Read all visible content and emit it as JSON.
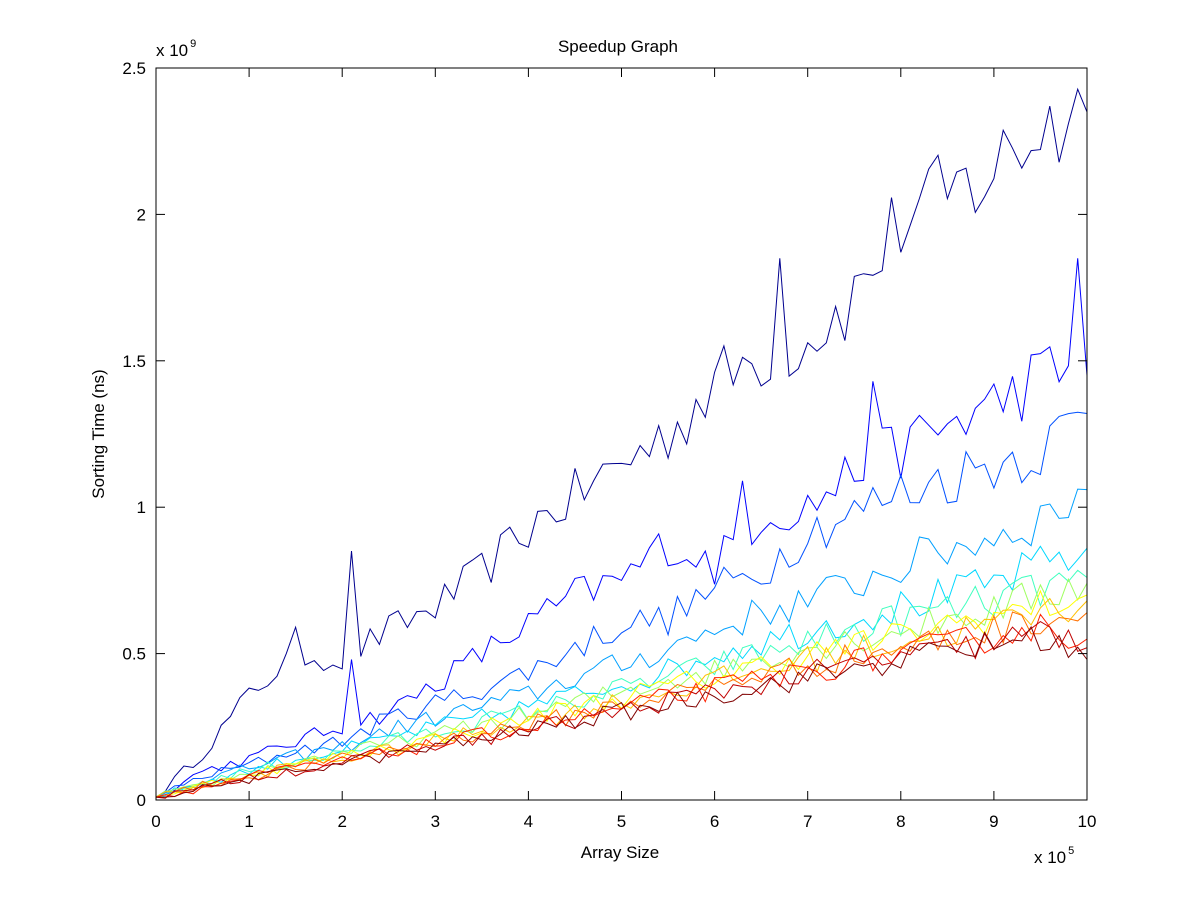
{
  "chart_data": {
    "type": "line",
    "title": "Speedup Graph",
    "xlabel": "Array Size",
    "ylabel": "Sorting Time (ns)",
    "x_multiplier": {
      "base": "x 10",
      "exponent": "5"
    },
    "y_multiplier": {
      "base": "x 10",
      "exponent": "9"
    },
    "xlim": [
      0,
      10
    ],
    "ylim": [
      0,
      2.5
    ],
    "x_ticks": [
      "0",
      "1",
      "2",
      "3",
      "4",
      "5",
      "6",
      "7",
      "8",
      "9",
      "10"
    ],
    "y_ticks": [
      "0",
      "0.5",
      "1",
      "1.5",
      "2",
      "2.5"
    ],
    "y_tick_values": [
      0,
      0.5,
      1,
      1.5,
      2,
      2.5
    ],
    "grid": false,
    "legend": "none",
    "x": [
      0,
      0.5,
      1,
      1.5,
      2,
      2.5,
      3,
      3.5,
      4,
      4.5,
      5,
      5.5,
      6,
      6.5,
      7,
      7.5,
      8,
      8.5,
      9,
      9.5,
      10
    ],
    "series": [
      {
        "color": "#00008f",
        "values": [
          0.01,
          0.16,
          0.36,
          0.5,
          0.48,
          0.58,
          0.66,
          0.78,
          0.93,
          1.04,
          1.15,
          1.25,
          1.42,
          1.52,
          1.58,
          1.72,
          1.98,
          2.05,
          2.15,
          2.3,
          2.35
        ],
        "spikes": [
          [
            1.5,
            0.59
          ],
          [
            2.1,
            0.85
          ],
          [
            6.7,
            1.85
          ],
          [
            9.6,
            2.37
          ]
        ]
      },
      {
        "color": "#0000ff",
        "values": [
          0.01,
          0.1,
          0.14,
          0.2,
          0.25,
          0.3,
          0.4,
          0.5,
          0.6,
          0.7,
          0.75,
          0.88,
          0.8,
          0.98,
          1.0,
          1.12,
          1.2,
          1.28,
          1.35,
          1.45,
          1.45
        ],
        "spikes": [
          [
            2.1,
            0.48
          ],
          [
            6.3,
            1.09
          ],
          [
            7.7,
            1.43
          ],
          [
            9.9,
            1.85
          ]
        ]
      },
      {
        "color": "#0050ff",
        "values": [
          0.01,
          0.08,
          0.12,
          0.17,
          0.2,
          0.28,
          0.33,
          0.38,
          0.44,
          0.52,
          0.6,
          0.62,
          0.72,
          0.78,
          0.92,
          0.98,
          1.05,
          1.1,
          1.15,
          1.2,
          1.32
        ]
      },
      {
        "color": "#00a0ff",
        "values": [
          0.01,
          0.07,
          0.11,
          0.15,
          0.18,
          0.24,
          0.28,
          0.32,
          0.36,
          0.42,
          0.46,
          0.52,
          0.58,
          0.64,
          0.68,
          0.74,
          0.8,
          0.86,
          0.9,
          0.96,
          1.06
        ]
      },
      {
        "color": "#00d8ff",
        "values": [
          0.01,
          0.06,
          0.1,
          0.14,
          0.17,
          0.21,
          0.25,
          0.28,
          0.32,
          0.36,
          0.4,
          0.44,
          0.5,
          0.54,
          0.58,
          0.62,
          0.66,
          0.7,
          0.74,
          0.8,
          0.86
        ]
      },
      {
        "color": "#40ffbf",
        "values": [
          0.01,
          0.06,
          0.1,
          0.13,
          0.16,
          0.2,
          0.23,
          0.27,
          0.3,
          0.34,
          0.38,
          0.42,
          0.46,
          0.5,
          0.54,
          0.58,
          0.62,
          0.65,
          0.68,
          0.72,
          0.76
        ]
      },
      {
        "color": "#9fff60",
        "values": [
          0.01,
          0.05,
          0.09,
          0.13,
          0.16,
          0.19,
          0.22,
          0.26,
          0.29,
          0.33,
          0.37,
          0.41,
          0.44,
          0.48,
          0.52,
          0.55,
          0.58,
          0.62,
          0.65,
          0.7,
          0.74
        ]
      },
      {
        "color": "#ffff00",
        "values": [
          0.01,
          0.05,
          0.09,
          0.12,
          0.15,
          0.18,
          0.21,
          0.25,
          0.28,
          0.32,
          0.35,
          0.39,
          0.42,
          0.46,
          0.5,
          0.53,
          0.56,
          0.6,
          0.63,
          0.66,
          0.7
        ]
      },
      {
        "color": "#ffbf00",
        "values": [
          0.01,
          0.05,
          0.08,
          0.12,
          0.14,
          0.17,
          0.2,
          0.24,
          0.27,
          0.3,
          0.34,
          0.37,
          0.41,
          0.44,
          0.48,
          0.51,
          0.54,
          0.57,
          0.6,
          0.64,
          0.68
        ]
      },
      {
        "color": "#ff7000",
        "values": [
          0.01,
          0.05,
          0.08,
          0.11,
          0.14,
          0.17,
          0.2,
          0.23,
          0.26,
          0.29,
          0.33,
          0.36,
          0.39,
          0.43,
          0.46,
          0.49,
          0.52,
          0.55,
          0.58,
          0.62,
          0.64
        ]
      },
      {
        "color": "#ff2000",
        "values": [
          0.01,
          0.04,
          0.08,
          0.11,
          0.13,
          0.16,
          0.19,
          0.22,
          0.25,
          0.28,
          0.31,
          0.35,
          0.38,
          0.41,
          0.44,
          0.47,
          0.5,
          0.53,
          0.56,
          0.59,
          0.55
        ]
      },
      {
        "color": "#c00000",
        "values": [
          0.01,
          0.04,
          0.08,
          0.1,
          0.13,
          0.16,
          0.19,
          0.21,
          0.24,
          0.27,
          0.3,
          0.34,
          0.37,
          0.4,
          0.43,
          0.46,
          0.49,
          0.51,
          0.54,
          0.57,
          0.52
        ]
      },
      {
        "color": "#800000",
        "values": [
          0.01,
          0.04,
          0.07,
          0.1,
          0.13,
          0.15,
          0.18,
          0.21,
          0.24,
          0.27,
          0.3,
          0.33,
          0.36,
          0.39,
          0.42,
          0.45,
          0.48,
          0.51,
          0.53,
          0.56,
          0.48
        ]
      }
    ]
  }
}
